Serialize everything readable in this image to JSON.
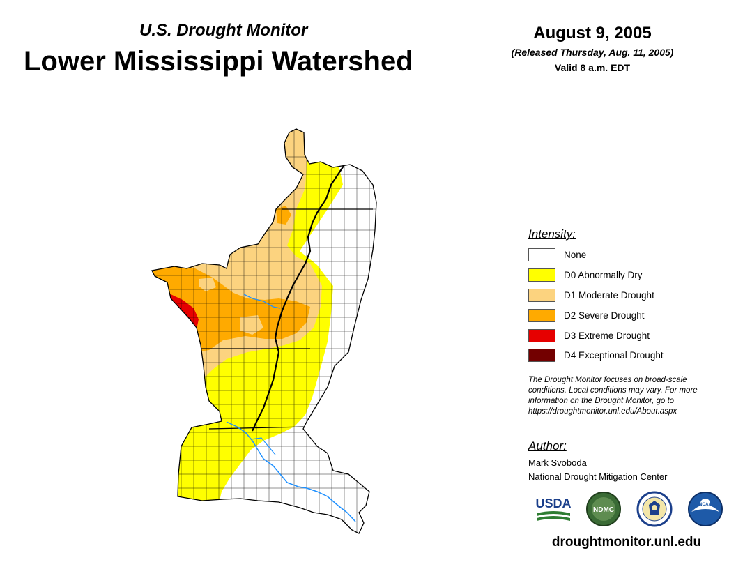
{
  "header": {
    "subtitle": "U.S. Drought Monitor",
    "title": "Lower Mississippi Watershed",
    "date": "August 9, 2005",
    "released": "(Released Thursday, Aug. 11, 2005)",
    "valid": "Valid 8 a.m. EDT"
  },
  "legend": {
    "title": "Intensity:",
    "items": [
      {
        "label": "None",
        "color": "#ffffff"
      },
      {
        "label": "D0 Abnormally Dry",
        "color": "#ffff00"
      },
      {
        "label": "D1 Moderate Drought",
        "color": "#fcd37f"
      },
      {
        "label": "D2 Severe Drought",
        "color": "#ffaa00"
      },
      {
        "label": "D3 Extreme Drought",
        "color": "#e60000"
      },
      {
        "label": "D4 Exceptional Drought",
        "color": "#730000"
      }
    ]
  },
  "note": "The Drought Monitor focuses on broad-scale conditions. Local conditions may vary. For more information on the Drought Monitor, go to https://droughtmonitor.unl.edu/About.aspx",
  "author": {
    "title": "Author:",
    "name": "Mark Svoboda",
    "org": "National Drought Mitigation Center"
  },
  "logos": {
    "usda": "USDA",
    "ndmc": "NDMC",
    "noaa": "NOAA"
  },
  "website": "droughtmonitor.unl.edu",
  "colors": {
    "river": "#1e90ff",
    "border": "#000000"
  }
}
